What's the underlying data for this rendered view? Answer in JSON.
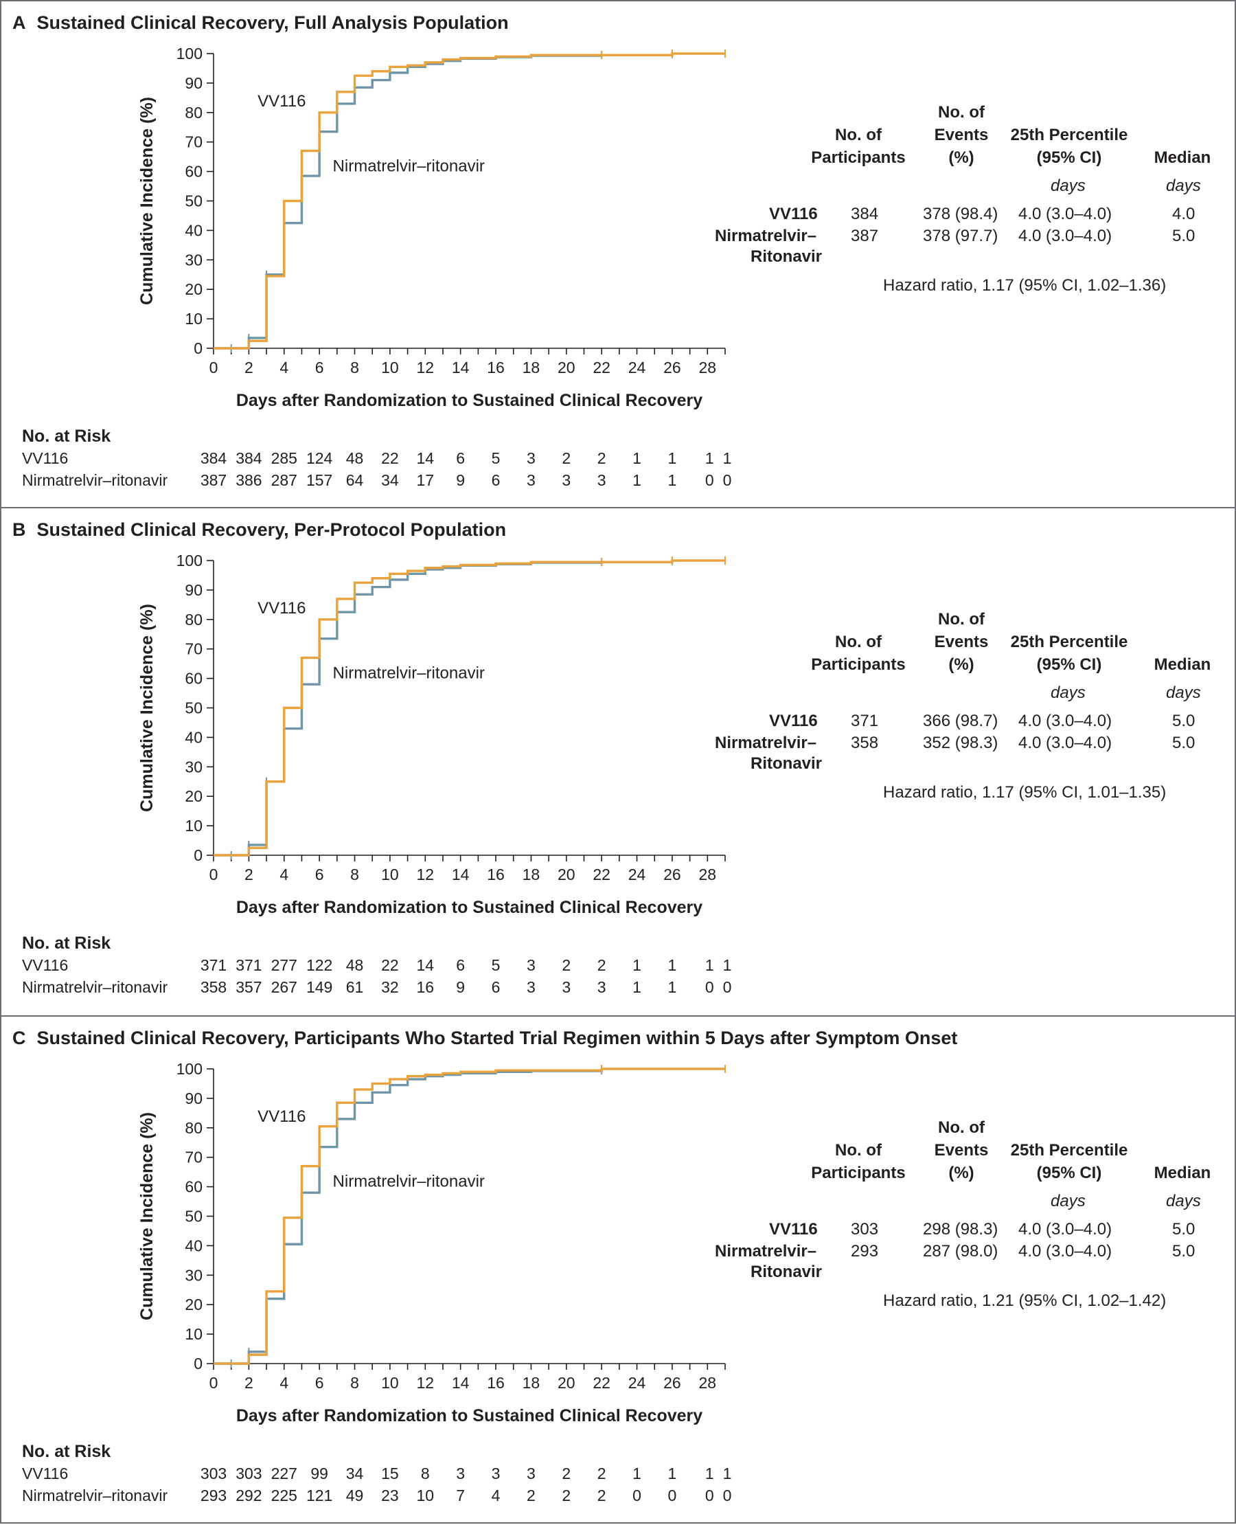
{
  "colors": {
    "vv116": "#e8a33d",
    "nirmatrelvir": "#6f95a8",
    "text": "#231f20",
    "border": "#6d6e71"
  },
  "table_headers": {
    "participants": [
      "No. of",
      "Participants"
    ],
    "events": [
      "No. of",
      "Events",
      "(%)"
    ],
    "percentile": [
      "25th Percentile",
      "(95% CI)"
    ],
    "median": "Median",
    "percentile_unit": "days",
    "median_unit": "days"
  },
  "panels": [
    {
      "letter": "A",
      "title": "Sustained Clinical Recovery, Full Analysis Population",
      "chart_data": {
        "type": "line",
        "title": "Sustained Clinical Recovery, Full Analysis Population",
        "xlabel": "Days after Randomization to Sustained Clinical Recovery",
        "ylabel": "Cumulative Incidence (%)",
        "xlim": [
          0,
          29
        ],
        "ylim": [
          0,
          100
        ],
        "x_ticks": [
          0,
          2,
          4,
          6,
          8,
          10,
          12,
          14,
          16,
          18,
          20,
          22,
          24,
          26,
          28
        ],
        "y_ticks": [
          0,
          10,
          20,
          30,
          40,
          50,
          60,
          70,
          80,
          90,
          100
        ],
        "series": [
          {
            "name": "VV116",
            "step": true,
            "x": [
              0,
              2,
              3,
              4,
              5,
              6,
              7,
              8,
              9,
              10,
              11,
              12,
              13,
              14,
              16,
              18,
              22,
              26,
              29
            ],
            "y": [
              0,
              2.5,
              24.5,
              50,
              67,
              80,
              87,
              92.5,
              94,
              95.5,
              96,
              97,
              98,
              98.5,
              99,
              99.5,
              99.5,
              100,
              100
            ],
            "censor_x": [
              22,
              26,
              29
            ]
          },
          {
            "name": "Nirmatrelvir–ritonavir",
            "step": true,
            "x": [
              0,
              2,
              3,
              4,
              5,
              6,
              7,
              8,
              9,
              10,
              11,
              12,
              13,
              14,
              16,
              18,
              22,
              26
            ],
            "y": [
              0,
              3.5,
              25,
              42.5,
              58.5,
              73.5,
              83,
              88.5,
              91,
              93.5,
              95.5,
              96.5,
              97.5,
              98.3,
              98.8,
              99.3,
              99.5,
              99.8
            ],
            "censor_x": [
              1,
              2,
              3,
              4,
              5,
              6,
              22,
              26
            ]
          }
        ]
      },
      "label_vv116": "VV116",
      "label_nirmatrelvir": "Nirmatrelvir–ritonavir",
      "label_vv116_pos": [
        5,
        82
      ],
      "label_nirm_pos": [
        6.6,
        60
      ],
      "rows": [
        {
          "name": "VV116",
          "participants": "384",
          "events": "378 (98.4)",
          "percentile": "4.0 (3.0–4.0)",
          "median": "4.0"
        },
        {
          "name": "Nirmatrelvir–",
          "name2": "Ritonavir",
          "participants": "387",
          "events": "378 (97.7)",
          "percentile": "4.0 (3.0–4.0)",
          "median": "5.0"
        }
      ],
      "hazard": "Hazard ratio, 1.17 (95% CI, 1.02–1.36)",
      "at_risk_title": "No. at Risk",
      "at_risk": [
        {
          "label": "VV116",
          "values": [
            "384",
            "384",
            "285",
            "124",
            "48",
            "22",
            "14",
            "6",
            "5",
            "3",
            "2",
            "2",
            "1",
            "1",
            "1",
            "1"
          ]
        },
        {
          "label": "Nirmatrelvir–ritonavir",
          "values": [
            "387",
            "386",
            "287",
            "157",
            "64",
            "34",
            "17",
            "9",
            "6",
            "3",
            "3",
            "3",
            "1",
            "1",
            "0",
            "0"
          ]
        }
      ]
    },
    {
      "letter": "B",
      "title": "Sustained Clinical Recovery, Per-Protocol Population",
      "chart_data": {
        "type": "line",
        "title": "Sustained Clinical Recovery, Per-Protocol Population",
        "xlabel": "Days after Randomization to Sustained Clinical Recovery",
        "ylabel": "Cumulative Incidence (%)",
        "xlim": [
          0,
          29
        ],
        "ylim": [
          0,
          100
        ],
        "x_ticks": [
          0,
          2,
          4,
          6,
          8,
          10,
          12,
          14,
          16,
          18,
          20,
          22,
          24,
          26,
          28
        ],
        "y_ticks": [
          0,
          10,
          20,
          30,
          40,
          50,
          60,
          70,
          80,
          90,
          100
        ],
        "series": [
          {
            "name": "VV116",
            "step": true,
            "x": [
              0,
              2,
              3,
              4,
              5,
              6,
              7,
              8,
              9,
              10,
              11,
              12,
              13,
              14,
              16,
              18,
              22,
              26,
              29
            ],
            "y": [
              0,
              2.5,
              25,
              50,
              67,
              80,
              87,
              92.5,
              94,
              95.5,
              96.5,
              97.5,
              98,
              98.5,
              99,
              99.5,
              99.5,
              100,
              100
            ],
            "censor_x": [
              22,
              26,
              29
            ]
          },
          {
            "name": "Nirmatrelvir–ritonavir",
            "step": true,
            "x": [
              0,
              2,
              3,
              4,
              5,
              6,
              7,
              8,
              9,
              10,
              11,
              12,
              13,
              14,
              16,
              18,
              22,
              26
            ],
            "y": [
              0,
              3.5,
              25,
              43,
              58,
              73.5,
              82.5,
              88.5,
              91,
              93.5,
              95.5,
              97,
              97.5,
              98.3,
              98.8,
              99.3,
              99.5,
              99.8
            ],
            "censor_x": [
              1,
              2,
              3,
              4,
              5,
              6,
              22,
              26
            ]
          }
        ]
      },
      "label_vv116": "VV116",
      "label_nirmatrelvir": "Nirmatrelvir–ritonavir",
      "label_vv116_pos": [
        5,
        82
      ],
      "label_nirm_pos": [
        6.6,
        60
      ],
      "rows": [
        {
          "name": "VV116",
          "participants": "371",
          "events": "366 (98.7)",
          "percentile": "4.0 (3.0–4.0)",
          "median": "5.0"
        },
        {
          "name": "Nirmatrelvir–",
          "name2": "Ritonavir",
          "participants": "358",
          "events": "352 (98.3)",
          "percentile": "4.0 (3.0–4.0)",
          "median": "5.0"
        }
      ],
      "hazard": "Hazard ratio, 1.17 (95% CI, 1.01–1.35)",
      "at_risk_title": "No. at Risk",
      "at_risk": [
        {
          "label": "VV116",
          "values": [
            "371",
            "371",
            "277",
            "122",
            "48",
            "22",
            "14",
            "6",
            "5",
            "3",
            "2",
            "2",
            "1",
            "1",
            "1",
            "1"
          ]
        },
        {
          "label": "Nirmatrelvir–ritonavir",
          "values": [
            "358",
            "357",
            "267",
            "149",
            "61",
            "32",
            "16",
            "9",
            "6",
            "3",
            "3",
            "3",
            "1",
            "1",
            "0",
            "0"
          ]
        }
      ]
    },
    {
      "letter": "C",
      "title": "Sustained Clinical Recovery, Participants Who Started Trial Regimen within 5 Days after Symptom Onset",
      "chart_data": {
        "type": "line",
        "title": "Sustained Clinical Recovery, Participants Who Started Trial Regimen within 5 Days after Symptom Onset",
        "xlabel": "Days after Randomization to Sustained Clinical Recovery",
        "ylabel": "Cumulative Incidence (%)",
        "xlim": [
          0,
          29
        ],
        "ylim": [
          0,
          100
        ],
        "x_ticks": [
          0,
          2,
          4,
          6,
          8,
          10,
          12,
          14,
          16,
          18,
          20,
          22,
          24,
          26,
          28
        ],
        "y_ticks": [
          0,
          10,
          20,
          30,
          40,
          50,
          60,
          70,
          80,
          90,
          100
        ],
        "series": [
          {
            "name": "VV116",
            "step": true,
            "x": [
              0,
              2,
              3,
              4,
              5,
              6,
              7,
              8,
              9,
              10,
              11,
              12,
              13,
              14,
              16,
              18,
              22,
              26,
              29
            ],
            "y": [
              0,
              3,
              24.5,
              49.5,
              67,
              80.5,
              88.5,
              93,
              95,
              96.5,
              97.5,
              98,
              98.5,
              99,
              99.5,
              99.5,
              100,
              100,
              100
            ],
            "censor_x": [
              22,
              29
            ]
          },
          {
            "name": "Nirmatrelvir–ritonavir",
            "step": true,
            "x": [
              0,
              2,
              3,
              4,
              5,
              6,
              7,
              8,
              9,
              10,
              11,
              12,
              13,
              14,
              16,
              18,
              22
            ],
            "y": [
              0,
              4,
              22,
              40.5,
              58,
              73.5,
              83,
              88.5,
              92,
              94.5,
              96.5,
              97.5,
              98,
              98.5,
              99,
              99.3,
              99.5
            ],
            "censor_x": [
              1,
              2,
              3,
              4,
              5,
              6,
              22
            ]
          }
        ]
      },
      "label_vv116": "VV116",
      "label_nirmatrelvir": "Nirmatrelvir–ritonavir",
      "label_vv116_pos": [
        5,
        82
      ],
      "label_nirm_pos": [
        6.6,
        60
      ],
      "rows": [
        {
          "name": "VV116",
          "participants": "303",
          "events": "298 (98.3)",
          "percentile": "4.0 (3.0–4.0)",
          "median": "5.0"
        },
        {
          "name": "Nirmatrelvir–",
          "name2": "Ritonavir",
          "participants": "293",
          "events": "287 (98.0)",
          "percentile": "4.0 (3.0–4.0)",
          "median": "5.0"
        }
      ],
      "hazard": "Hazard ratio, 1.21 (95% CI, 1.02–1.42)",
      "at_risk_title": "No. at Risk",
      "at_risk": [
        {
          "label": "VV116",
          "values": [
            "303",
            "303",
            "227",
            "99",
            "34",
            "15",
            "8",
            "3",
            "3",
            "3",
            "2",
            "2",
            "1",
            "1",
            "1",
            "1"
          ]
        },
        {
          "label": "Nirmatrelvir–ritonavir",
          "values": [
            "293",
            "292",
            "225",
            "121",
            "49",
            "23",
            "10",
            "7",
            "4",
            "2",
            "2",
            "2",
            "0",
            "0",
            "0",
            "0"
          ]
        }
      ]
    }
  ]
}
